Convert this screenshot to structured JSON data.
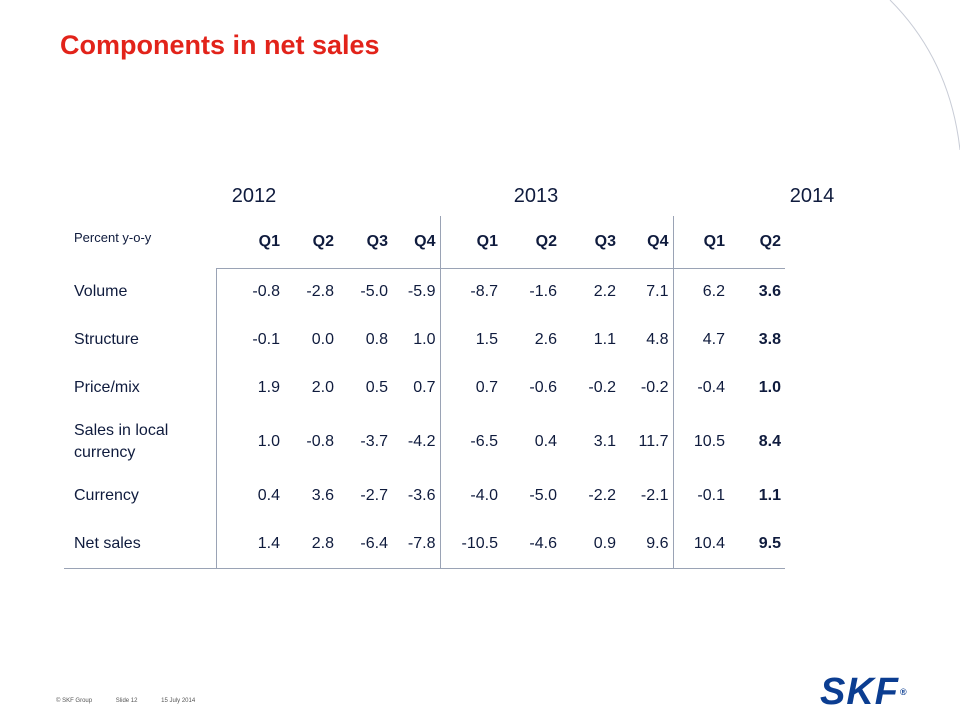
{
  "title": "Components in net sales",
  "years": [
    "2012",
    "2013",
    "2014"
  ],
  "table": {
    "corner_label": "Percent y-o-y",
    "quarters": [
      "Q1",
      "Q2",
      "Q3",
      "Q4",
      "Q1",
      "Q2",
      "Q3",
      "Q4",
      "Q1",
      "Q2"
    ],
    "rows": [
      {
        "label": "Volume",
        "values": [
          "-0.8",
          "-2.8",
          "-5.0",
          "-5.9",
          "-8.7",
          "-1.6",
          "2.2",
          "7.1",
          "6.2",
          "3.6"
        ]
      },
      {
        "label": "Structure",
        "values": [
          "-0.1",
          "0.0",
          "0.8",
          "1.0",
          "1.5",
          "2.6",
          "1.1",
          "4.8",
          "4.7",
          "3.8"
        ]
      },
      {
        "label": "Price/mix",
        "values": [
          "1.9",
          "2.0",
          "0.5",
          "0.7",
          "0.7",
          "-0.6",
          "-0.2",
          "-0.2",
          "-0.4",
          "1.0"
        ]
      },
      {
        "label_line1": "Sales in local",
        "label_line2": "currency",
        "values": [
          "1.0",
          "-0.8",
          "-3.7",
          "-4.2",
          "-6.5",
          "0.4",
          "3.1",
          "11.7",
          "10.5",
          "8.4"
        ]
      },
      {
        "label": "Currency",
        "values": [
          "0.4",
          "3.6",
          "-2.7",
          "-3.6",
          "-4.0",
          "-5.0",
          "-2.2",
          "-2.1",
          "-0.1",
          "1.1"
        ]
      },
      {
        "label": "Net sales",
        "values": [
          "1.4",
          "2.8",
          "-6.4",
          "-7.8",
          "-10.5",
          "-4.6",
          "0.9",
          "9.6",
          "10.4",
          "9.5"
        ]
      }
    ]
  },
  "footer": {
    "copyright": "© SKF Group",
    "slide": "Slide 12",
    "date": "15 July 2014"
  },
  "logo": {
    "text": "SKF",
    "mark": "®"
  },
  "colors": {
    "title": "#e2231a",
    "text": "#0f1b3d",
    "logo": "#0b3d91",
    "rule": "#9aa3b5"
  }
}
